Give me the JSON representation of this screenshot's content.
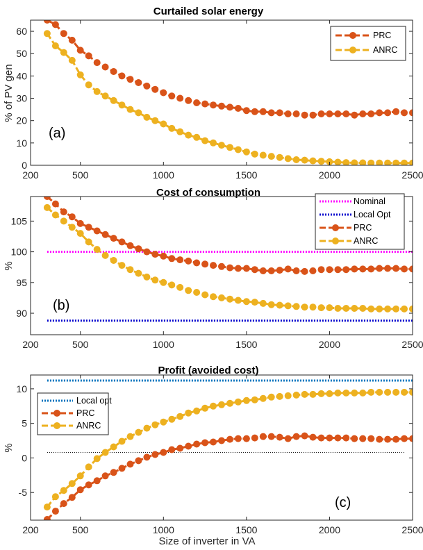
{
  "colors": {
    "prc": "#D95319",
    "anrc": "#EDB120",
    "nominal": "#FF00FF",
    "local_opt_b": "#0000CD",
    "local_opt_c": "#0072BD",
    "zero": "#000000"
  },
  "xlabel": "Size of inverter in VA",
  "chart_data": [
    {
      "type": "line",
      "title": "Curtailed solar energy",
      "ylabel": "% of PV gen",
      "panel_label": "(a)",
      "xlim": [
        200,
        2500
      ],
      "ylim": [
        0,
        65
      ],
      "xticks": [
        200,
        500,
        1000,
        1500,
        2000,
        2500
      ],
      "yticks": [
        0,
        10,
        20,
        30,
        40,
        50,
        60
      ],
      "legend": {
        "position": "top-right",
        "entries": [
          "PRC",
          "ANRC"
        ]
      },
      "series": [
        {
          "name": "PRC",
          "x": [
            300,
            350,
            400,
            450,
            500,
            550,
            600,
            650,
            700,
            750,
            800,
            850,
            900,
            950,
            1000,
            1050,
            1100,
            1150,
            1200,
            1250,
            1300,
            1350,
            1400,
            1450,
            1500,
            1550,
            1600,
            1650,
            1700,
            1750,
            1800,
            1850,
            1900,
            1950,
            2000,
            2050,
            2100,
            2150,
            2200,
            2250,
            2300,
            2350,
            2400,
            2450,
            2500
          ],
          "values": [
            65,
            63,
            59,
            56,
            51.5,
            49,
            46,
            44,
            42,
            40,
            38.5,
            37,
            35.5,
            34,
            32.5,
            31,
            30,
            29,
            28,
            27.5,
            27,
            26.5,
            26,
            25.5,
            24.5,
            24,
            24,
            23.5,
            23.5,
            23,
            23,
            22.5,
            22.5,
            23,
            23,
            23,
            23,
            22.5,
            23,
            23,
            23.5,
            23.5,
            24,
            23.5,
            23.5
          ]
        },
        {
          "name": "ANRC",
          "x": [
            300,
            350,
            400,
            450,
            500,
            550,
            600,
            650,
            700,
            750,
            800,
            850,
            900,
            950,
            1000,
            1050,
            1100,
            1150,
            1200,
            1250,
            1300,
            1350,
            1400,
            1450,
            1500,
            1550,
            1600,
            1650,
            1700,
            1750,
            1800,
            1850,
            1900,
            1950,
            2000,
            2050,
            2100,
            2150,
            2200,
            2250,
            2300,
            2350,
            2400,
            2450,
            2500
          ],
          "values": [
            59,
            53.5,
            50.5,
            47,
            40.5,
            36,
            33,
            31,
            29,
            27,
            25,
            23.5,
            21.5,
            20,
            18.5,
            16.5,
            15,
            13.5,
            12.5,
            11,
            10,
            9,
            8,
            7,
            6,
            5,
            4.5,
            4,
            3.5,
            3,
            2.5,
            2.3,
            2,
            1.8,
            1.6,
            1.4,
            1.2,
            1.1,
            1.1,
            1,
            1,
            1,
            1,
            1,
            1
          ]
        }
      ]
    },
    {
      "type": "line",
      "title": "Cost of consumption",
      "ylabel": "%",
      "panel_label": "(b)",
      "xlim": [
        200,
        2500
      ],
      "ylim": [
        86.5,
        109
      ],
      "xticks": [
        200,
        500,
        1000,
        1500,
        2000,
        2500
      ],
      "yticks": [
        90,
        95,
        100,
        105
      ],
      "legend": {
        "position": "top-right",
        "entries": [
          "Nominal",
          "Local Opt",
          "PRC",
          "ANRC"
        ]
      },
      "series": [
        {
          "name": "Nominal",
          "style": "dotted",
          "x": [
            300,
            2500
          ],
          "values": [
            100,
            100
          ]
        },
        {
          "name": "Local Opt",
          "style": "dotted",
          "x": [
            300,
            2500
          ],
          "values": [
            88.8,
            88.8
          ]
        },
        {
          "name": "PRC",
          "x": [
            300,
            350,
            400,
            450,
            500,
            550,
            600,
            650,
            700,
            750,
            800,
            850,
            900,
            950,
            1000,
            1050,
            1100,
            1150,
            1200,
            1250,
            1300,
            1350,
            1400,
            1450,
            1500,
            1550,
            1600,
            1650,
            1700,
            1750,
            1800,
            1850,
            1900,
            1950,
            2000,
            2050,
            2100,
            2150,
            2200,
            2250,
            2300,
            2350,
            2400,
            2450,
            2500
          ],
          "values": [
            109,
            107.8,
            106.5,
            105.7,
            104.6,
            104,
            103.4,
            102.8,
            102.2,
            101.6,
            101,
            100.5,
            100,
            99.6,
            99.3,
            98.9,
            98.7,
            98.5,
            98.2,
            98,
            97.8,
            97.6,
            97.4,
            97.3,
            97.3,
            97.1,
            96.9,
            96.9,
            97,
            97.2,
            96.9,
            96.8,
            96.9,
            97.1,
            97.1,
            97.1,
            97.1,
            97.2,
            97.2,
            97.2,
            97.3,
            97.3,
            97.3,
            97.2,
            97.2
          ]
        },
        {
          "name": "ANRC",
          "x": [
            300,
            350,
            400,
            450,
            500,
            550,
            600,
            650,
            700,
            750,
            800,
            850,
            900,
            950,
            1000,
            1050,
            1100,
            1150,
            1200,
            1250,
            1300,
            1350,
            1400,
            1450,
            1500,
            1550,
            1600,
            1650,
            1700,
            1750,
            1800,
            1850,
            1900,
            1950,
            2000,
            2050,
            2100,
            2150,
            2200,
            2250,
            2300,
            2350,
            2400,
            2450,
            2500
          ],
          "values": [
            107.2,
            106,
            105,
            104,
            103,
            101.6,
            100.4,
            99.4,
            98.6,
            97.8,
            97.1,
            96.5,
            95.9,
            95.4,
            95,
            94.6,
            94.2,
            93.7,
            93.4,
            93,
            92.7,
            92.5,
            92.3,
            92.1,
            91.9,
            91.8,
            91.6,
            91.4,
            91.3,
            91.2,
            91.1,
            91,
            91,
            90.9,
            90.9,
            90.8,
            90.8,
            90.8,
            90.8,
            90.7,
            90.7,
            90.7,
            90.7,
            90.7,
            90.7
          ]
        }
      ]
    },
    {
      "type": "line",
      "title": "Profit (avoided cost)",
      "ylabel": "%",
      "panel_label": "(c)",
      "xlim": [
        200,
        2500
      ],
      "ylim": [
        -9,
        12
      ],
      "xticks": [
        200,
        500,
        1000,
        1500,
        2000,
        2500
      ],
      "yticks": [
        -5,
        0,
        5,
        10
      ],
      "legend": {
        "position": "top-left",
        "entries": [
          "Local opt",
          "PRC",
          "ANRC"
        ]
      },
      "series": [
        {
          "name": "Local opt",
          "style": "dotted",
          "x": [
            300,
            2500
          ],
          "values": [
            11.2,
            11.2
          ]
        },
        {
          "name": "zero",
          "style": "dotted",
          "x": [
            300,
            2450
          ],
          "values": [
            0.8,
            0.8
          ]
        },
        {
          "name": "PRC",
          "x": [
            300,
            350,
            400,
            450,
            500,
            550,
            600,
            650,
            700,
            750,
            800,
            850,
            900,
            950,
            1000,
            1050,
            1100,
            1150,
            1200,
            1250,
            1300,
            1350,
            1400,
            1450,
            1500,
            1550,
            1600,
            1650,
            1700,
            1750,
            1800,
            1850,
            1900,
            1950,
            2000,
            2050,
            2100,
            2150,
            2200,
            2250,
            2300,
            2350,
            2400,
            2450,
            2500
          ],
          "values": [
            -8.9,
            -7.7,
            -6.6,
            -5.7,
            -4.6,
            -3.9,
            -3.3,
            -2.6,
            -2.1,
            -1.5,
            -0.9,
            -0.4,
            0.1,
            0.5,
            0.8,
            1.2,
            1.4,
            1.7,
            2,
            2.2,
            2.3,
            2.5,
            2.7,
            2.8,
            2.8,
            2.9,
            3.1,
            3.1,
            3,
            2.8,
            3.1,
            3.2,
            3,
            2.9,
            2.9,
            2.9,
            2.9,
            2.8,
            2.8,
            2.8,
            2.7,
            2.7,
            2.7,
            2.8,
            2.8
          ]
        },
        {
          "name": "ANRC",
          "x": [
            300,
            350,
            400,
            450,
            500,
            550,
            600,
            650,
            700,
            750,
            800,
            850,
            900,
            950,
            1000,
            1050,
            1100,
            1150,
            1200,
            1250,
            1300,
            1350,
            1400,
            1450,
            1500,
            1550,
            1600,
            1650,
            1700,
            1750,
            1800,
            1850,
            1900,
            1950,
            2000,
            2050,
            2100,
            2150,
            2200,
            2250,
            2300,
            2350,
            2400,
            2450,
            2500
          ],
          "values": [
            -7.1,
            -5.6,
            -4.7,
            -3.7,
            -2.6,
            -1.3,
            -0.1,
            0.8,
            1.6,
            2.4,
            3.1,
            3.7,
            4.3,
            4.8,
            5.2,
            5.6,
            6,
            6.5,
            6.8,
            7.2,
            7.5,
            7.7,
            7.9,
            8.1,
            8.3,
            8.4,
            8.6,
            8.8,
            8.9,
            9,
            9.1,
            9.2,
            9.2,
            9.3,
            9.3,
            9.4,
            9.4,
            9.4,
            9.4,
            9.5,
            9.5,
            9.5,
            9.5,
            9.5,
            9.5
          ]
        }
      ]
    }
  ]
}
